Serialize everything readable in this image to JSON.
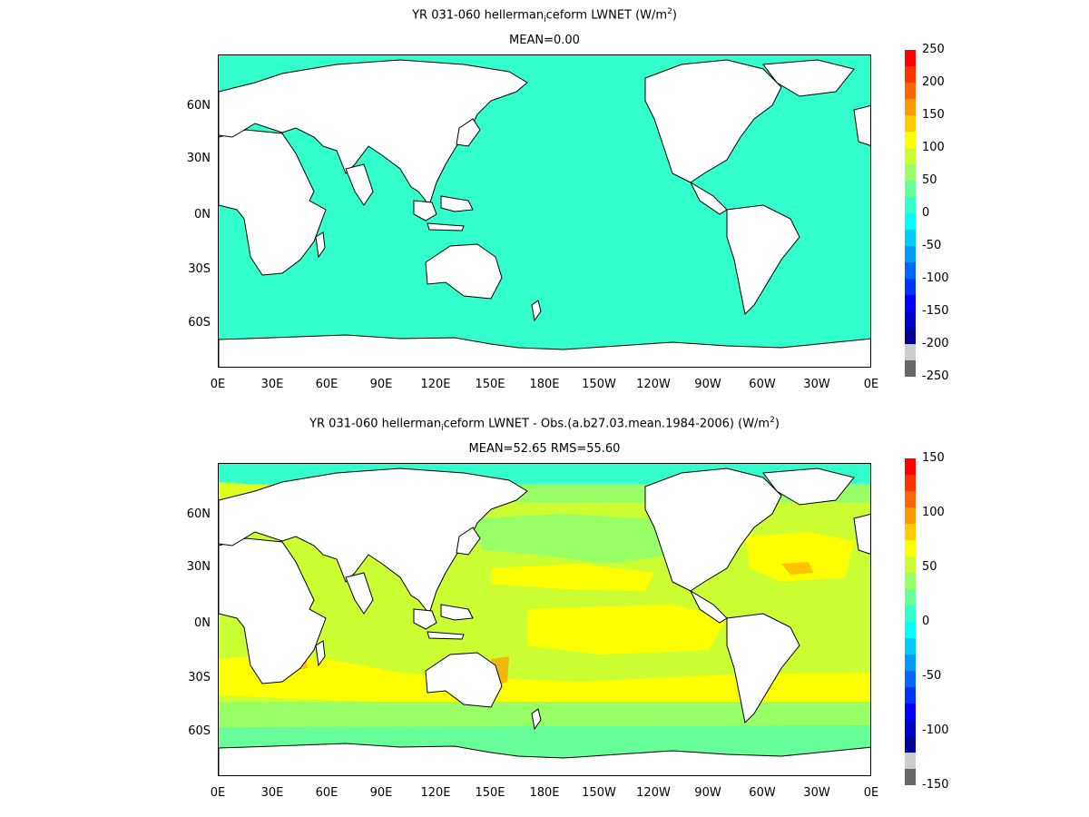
{
  "panels": [
    {
      "title_pre": "YR 031-060 hellerman",
      "title_sub": "i",
      "title_post": "ceform  LWNET (W/m",
      "title_sup": "2",
      "title_end": ")",
      "subtitle": "MEAN=0.00",
      "colorbar_labels": [
        "250",
        "200",
        "150",
        "100",
        "50",
        "0",
        "-50",
        "-100",
        "-150",
        "-200",
        "-250"
      ],
      "dominant_color": "#33ffcc"
    },
    {
      "title_pre": "YR 031-060 hellerman",
      "title_sub": "i",
      "title_post": "ceform LWNET - Obs.(a.b27.03.mean.1984-2006) (W/m",
      "title_sup": "2",
      "title_end": ")",
      "subtitle": "MEAN=52.65 RMS=55.60",
      "colorbar_labels": [
        "150",
        "100",
        "50",
        "0",
        "-50",
        "-100",
        "-150"
      ],
      "dominant_color": "#ccff33"
    }
  ],
  "x_ticks": [
    "0E",
    "30E",
    "60E",
    "90E",
    "120E",
    "150E",
    "180E",
    "150W",
    "120W",
    "90W",
    "60W",
    "30W",
    "0E"
  ],
  "y_ticks": [
    "60N",
    "30N",
    "0N",
    "30S",
    "60S"
  ],
  "colorbar_colors": [
    "#ff0000",
    "#ff3300",
    "#ff6600",
    "#ff9900",
    "#ffcc00",
    "#ffff00",
    "#ccff33",
    "#99ff66",
    "#66ff99",
    "#33ffcc",
    "#00ffff",
    "#00ccff",
    "#0099ff",
    "#0066ff",
    "#0033ff",
    "#0000ff",
    "#0000cc",
    "#000099",
    "#cccccc",
    "#666666"
  ]
}
